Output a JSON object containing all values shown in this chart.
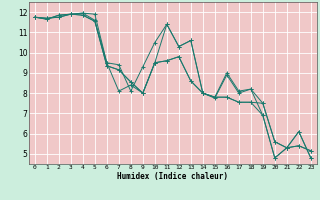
{
  "xlabel": "Humidex (Indice chaleur)",
  "background_color": "#cceedd",
  "plot_bg_color": "#f0c8c8",
  "grid_color": "#ffffff",
  "line_color": "#1a7a6e",
  "xlim": [
    -0.5,
    23.5
  ],
  "ylim": [
    4.5,
    12.5
  ],
  "xticks": [
    0,
    1,
    2,
    3,
    4,
    5,
    6,
    7,
    8,
    9,
    10,
    11,
    12,
    13,
    14,
    15,
    16,
    17,
    18,
    19,
    20,
    21,
    22,
    23
  ],
  "yticks": [
    5,
    6,
    7,
    8,
    9,
    10,
    11,
    12
  ],
  "series": [
    [
      11.75,
      11.7,
      11.75,
      11.9,
      11.95,
      11.6,
      9.5,
      8.1,
      8.4,
      8.0,
      9.5,
      11.4,
      10.3,
      10.6,
      8.0,
      7.75,
      8.9,
      8.0,
      8.2,
      6.9,
      4.8,
      5.3,
      6.1,
      4.8
    ],
    [
      11.75,
      11.65,
      11.85,
      11.9,
      11.85,
      11.55,
      9.35,
      9.15,
      8.55,
      8.0,
      9.5,
      9.6,
      9.8,
      8.6,
      8.0,
      7.8,
      7.8,
      7.55,
      7.55,
      7.5,
      5.6,
      5.3,
      5.4,
      5.15
    ],
    [
      11.75,
      11.65,
      11.85,
      11.9,
      11.85,
      11.55,
      9.35,
      9.15,
      8.55,
      8.0,
      9.5,
      9.6,
      9.8,
      8.6,
      8.0,
      7.8,
      7.8,
      7.55,
      7.55,
      6.9,
      4.8,
      5.3,
      6.1,
      4.8
    ],
    [
      11.75,
      11.7,
      11.75,
      11.9,
      11.95,
      11.9,
      9.5,
      9.4,
      8.1,
      9.3,
      10.5,
      11.4,
      10.3,
      10.6,
      8.0,
      7.8,
      9.0,
      8.1,
      8.2,
      7.5,
      5.6,
      5.3,
      5.4,
      5.15
    ]
  ]
}
